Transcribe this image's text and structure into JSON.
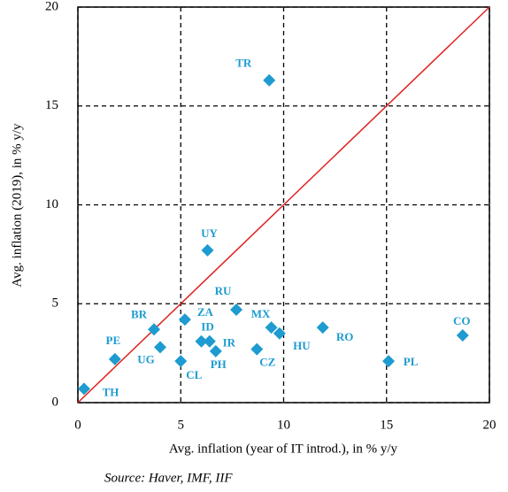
{
  "chart_data": {
    "type": "scatter",
    "x_label": "Avg. inflation (year of IT introd.), in % y/y",
    "y_label": "Avg. inflation (2019), in % y/y",
    "source": "Source: Haver, IMF, IIF",
    "labels": [
      "TR",
      "UY",
      "RU",
      "ZA",
      "BR",
      "MX",
      "HU",
      "RO",
      "CO",
      "ID",
      "IR",
      "UG",
      "CZ",
      "PH",
      "PE",
      "CL",
      "PL",
      "TH"
    ],
    "x": [
      9.3,
      6.3,
      7.7,
      5.2,
      3.7,
      9.4,
      9.8,
      11.9,
      18.7,
      6.0,
      6.4,
      4.0,
      8.7,
      6.7,
      1.8,
      5.0,
      15.1,
      0.3
    ],
    "y": [
      16.3,
      7.7,
      4.7,
      4.2,
      3.7,
      3.8,
      3.5,
      3.8,
      3.4,
      3.1,
      3.1,
      2.8,
      2.7,
      2.6,
      2.2,
      2.1,
      2.1,
      0.7
    ],
    "color": "#1e9bd0",
    "diagonal": true,
    "diagonal_color": "#e02020",
    "xlim": [
      0,
      20
    ],
    "ylim": [
      0,
      20
    ],
    "xticks": [
      0,
      5,
      10,
      15,
      20
    ],
    "yticks": [
      0,
      5,
      10,
      15,
      20
    ],
    "grid": true
  }
}
